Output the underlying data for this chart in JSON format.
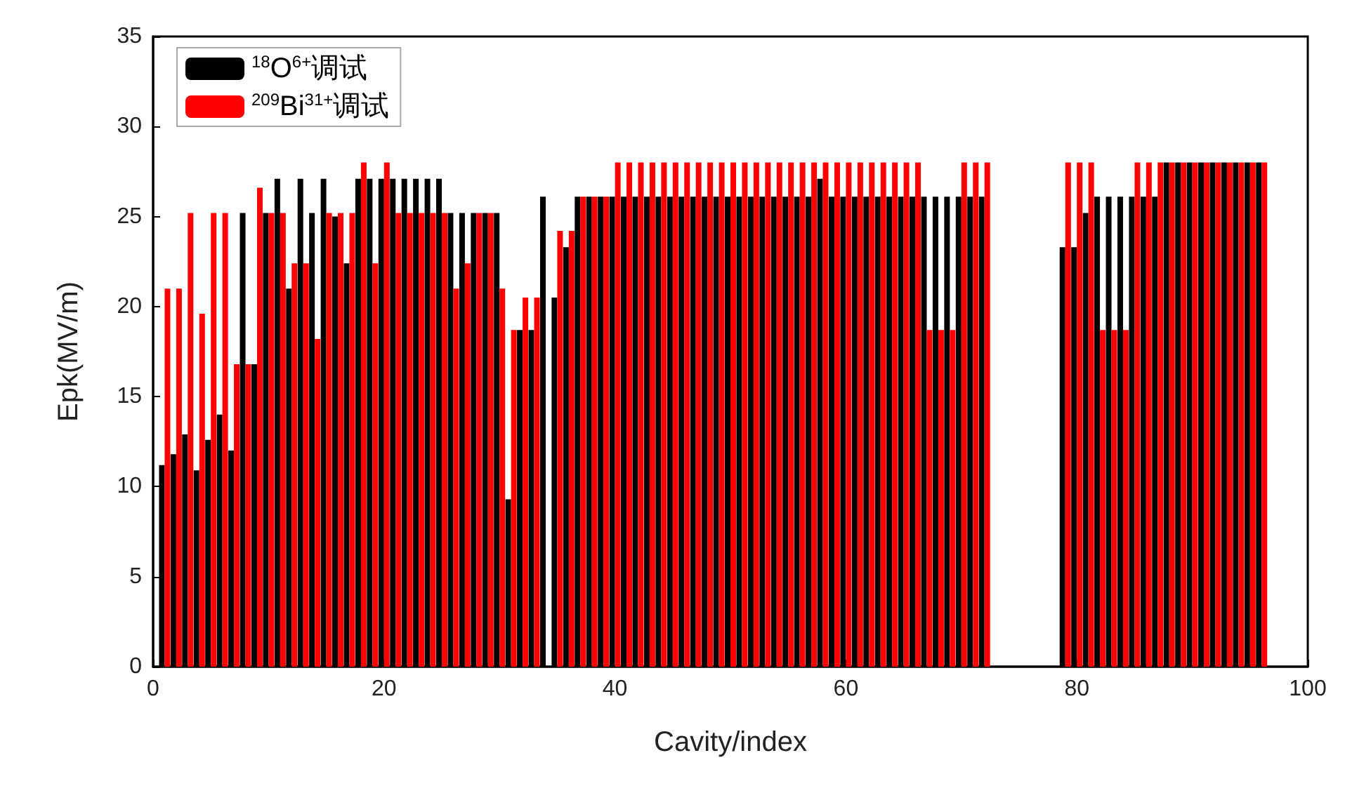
{
  "chart_data": {
    "type": "bar",
    "xlabel": "Cavity/index",
    "ylabel": "Epk(MV/m)",
    "x": [
      1,
      2,
      3,
      4,
      5,
      6,
      7,
      8,
      9,
      10,
      11,
      12,
      13,
      14,
      15,
      16,
      17,
      18,
      19,
      20,
      21,
      22,
      23,
      24,
      25,
      26,
      27,
      28,
      29,
      30,
      31,
      32,
      33,
      34,
      35,
      36,
      37,
      38,
      39,
      40,
      41,
      42,
      43,
      44,
      45,
      46,
      47,
      48,
      49,
      50,
      51,
      52,
      53,
      54,
      55,
      56,
      57,
      58,
      59,
      60,
      61,
      62,
      63,
      64,
      65,
      66,
      67,
      68,
      69,
      70,
      71,
      72,
      73,
      74,
      75,
      76,
      77,
      78,
      79,
      80,
      81,
      82,
      83,
      84,
      85,
      86,
      87,
      88,
      89,
      90,
      91,
      92,
      93,
      94,
      95,
      96
    ],
    "series": [
      {
        "name": "$^{18}$O$^{6+}$调试",
        "color": "#000000",
        "values": [
          11.2,
          11.8,
          12.9,
          10.9,
          12.6,
          14.0,
          12.0,
          25.2,
          16.8,
          25.2,
          27.1,
          21.0,
          27.1,
          25.2,
          27.1,
          25.0,
          22.4,
          27.1,
          27.1,
          27.1,
          27.1,
          27.1,
          27.1,
          27.1,
          27.1,
          25.2,
          25.2,
          25.2,
          25.2,
          25.2,
          9.3,
          18.7,
          18.7,
          26.1,
          20.5,
          23.3,
          26.1,
          26.1,
          26.1,
          26.1,
          26.1,
          26.1,
          26.1,
          26.1,
          26.1,
          26.1,
          26.1,
          26.1,
          26.1,
          26.1,
          26.1,
          26.1,
          26.1,
          26.1,
          26.1,
          26.1,
          26.1,
          27.1,
          26.1,
          26.1,
          26.1,
          26.1,
          26.1,
          26.1,
          26.1,
          26.1,
          26.1,
          26.1,
          26.1,
          26.1,
          26.1,
          26.1,
          null,
          null,
          null,
          null,
          null,
          null,
          23.3,
          23.3,
          25.2,
          26.1,
          26.1,
          26.1,
          26.1,
          26.1,
          26.1,
          28,
          28,
          28,
          28,
          28,
          28,
          28,
          28,
          28
        ]
      },
      {
        "name": "$^{209}$Bi$^{31+}$调试",
        "color": "#ff0000",
        "values": [
          21,
          21,
          25.2,
          19.6,
          25.2,
          25.2,
          16.8,
          16.8,
          26.6,
          25.2,
          25.2,
          22.4,
          22.4,
          18.2,
          25.2,
          25.2,
          25.2,
          28,
          22.4,
          28,
          25.2,
          25.2,
          25.2,
          25.2,
          25.2,
          21,
          22.4,
          25.2,
          25.2,
          21,
          18.7,
          20.5,
          20.5,
          null,
          24.2,
          24.2,
          26.1,
          26.1,
          26.1,
          28,
          28,
          28,
          28,
          28,
          28,
          28,
          28,
          28,
          28,
          28,
          28,
          28,
          28,
          28,
          28,
          28,
          28,
          28,
          28,
          28,
          28,
          28,
          28,
          28,
          28,
          28,
          18.7,
          18.7,
          18.7,
          28,
          28,
          28,
          null,
          null,
          null,
          null,
          null,
          null,
          28,
          28,
          28,
          18.7,
          18.7,
          18.7,
          28,
          28,
          28,
          28,
          28,
          28,
          28,
          28,
          28,
          28,
          28,
          28
        ]
      }
    ],
    "xlim": [
      0,
      100
    ],
    "xticks": [
      0,
      20,
      40,
      60,
      80,
      100
    ],
    "ylim": [
      0,
      35
    ],
    "yticks": [
      0,
      5,
      10,
      15,
      20,
      25,
      30,
      35
    ],
    "legend": "top left",
    "grid": false
  }
}
